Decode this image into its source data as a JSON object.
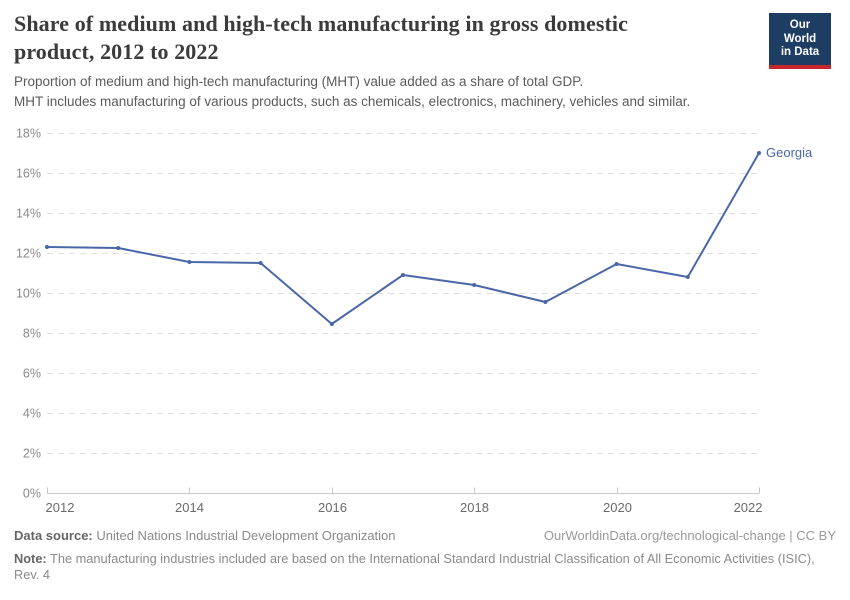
{
  "logo": {
    "line1": "Our World",
    "line2": "in Data",
    "bg_color": "#1d3d63",
    "bar_color": "#c7252c"
  },
  "chart_data": {
    "type": "line",
    "title": "Share of medium and high-tech manufacturing in gross domestic product, 2012 to 2022",
    "subtitle_lines": [
      "Proportion of medium and high-tech manufacturing (MHT) value added as a share of total GDP.",
      "MHT includes manufacturing of various products, such as chemicals, electronics, machinery, vehicles and similar."
    ],
    "x": [
      2012,
      2013,
      2014,
      2015,
      2016,
      2017,
      2018,
      2019,
      2020,
      2021,
      2022
    ],
    "series": [
      {
        "name": "Georgia",
        "color": "#4a67a8",
        "values": [
          12.3,
          12.25,
          11.55,
          11.5,
          8.45,
          10.9,
          10.4,
          9.55,
          11.45,
          10.8,
          17.0
        ]
      }
    ],
    "x_ticks": [
      2012,
      2014,
      2016,
      2018,
      2020,
      2022
    ],
    "y_ticks": [
      0,
      2,
      4,
      6,
      8,
      10,
      12,
      14,
      16,
      18
    ],
    "y_suffix": "%",
    "xlim": [
      2012,
      2022
    ],
    "ylim": [
      0,
      18
    ],
    "grid": true,
    "grid_style": "dashed",
    "grid_color": "#e0e0e0",
    "axis_color": "#c8c8c8",
    "legend_position": "line-end-label"
  },
  "footer": {
    "datasource_label": "Data source:",
    "datasource_value": " United Nations Industrial Development Organization",
    "citation": "OurWorldinData.org/technological-change | CC BY",
    "note_label": "Note:",
    "note_value": " The manufacturing industries included are based on the International Standard Industrial Classification of All Economic Activities (ISIC), Rev. 4"
  }
}
